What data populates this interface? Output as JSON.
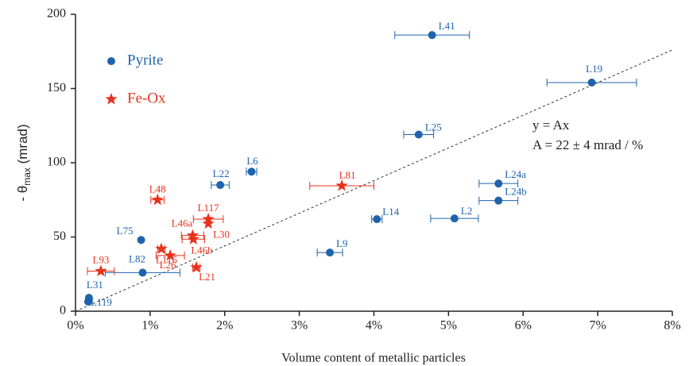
{
  "chart_data": {
    "type": "scatter",
    "x_label": "Volume content of metallic particles",
    "y_label_parts": [
      "- θ",
      "max",
      " (mrad)"
    ],
    "xlim": [
      0,
      8
    ],
    "ylim": [
      0,
      200
    ],
    "xticks": [
      {
        "value": 0,
        "label": "0%"
      },
      {
        "value": 1,
        "label": "1%"
      },
      {
        "value": 2,
        "label": "2%"
      },
      {
        "value": 3,
        "label": "3%"
      },
      {
        "value": 4,
        "label": "4%"
      },
      {
        "value": 5,
        "label": "5%"
      },
      {
        "value": 6,
        "label": "6%"
      },
      {
        "value": 7,
        "label": "7%"
      },
      {
        "value": 8,
        "label": "8%"
      }
    ],
    "yticks": [
      0,
      50,
      100,
      150,
      200
    ],
    "fit_slope": 22,
    "annotations": [
      "y = Ax",
      "A = 22 ± 4 mrad / %"
    ],
    "series": [
      {
        "name": "Pyrite",
        "color": "#1f63ad",
        "marker": "circle",
        "labels": [
          "L41",
          "L19",
          "L25",
          "L6",
          "L22",
          "L24a",
          "L24b",
          "L14",
          "L2",
          "L9",
          "L75",
          "L82",
          "L31",
          "L119"
        ],
        "x": [
          4.78,
          6.92,
          4.6,
          2.36,
          1.94,
          5.67,
          5.67,
          4.04,
          5.08,
          3.41,
          0.88,
          0.9,
          0.18,
          0.17
        ],
        "y": [
          186,
          154,
          119,
          94,
          85,
          86,
          74.5,
          62,
          62.5,
          39.5,
          48,
          26,
          9,
          6.5
        ],
        "xerr": [
          0.5,
          0.6,
          0.2,
          0.07,
          0.12,
          0.26,
          0.26,
          0.07,
          0.32,
          0.17,
          null,
          0.5,
          null,
          null
        ]
      },
      {
        "name": "Fe-Ox",
        "color": "#e8321e",
        "marker": "star",
        "labels": [
          "L48",
          "L117",
          "L30",
          "L46a",
          "L46b",
          "L116",
          "L26",
          "L21",
          "L93",
          "L81"
        ],
        "x": [
          1.1,
          1.78,
          1.78,
          1.57,
          1.58,
          1.15,
          1.27,
          1.62,
          0.34,
          3.57
        ],
        "y": [
          75,
          62,
          59,
          51,
          48.5,
          42,
          37.5,
          29.5,
          27,
          84.5
        ],
        "xerr": [
          0.09,
          0.2,
          null,
          0.15,
          0.15,
          0.05,
          0.19,
          0.05,
          0.18,
          0.43
        ]
      }
    ]
  }
}
